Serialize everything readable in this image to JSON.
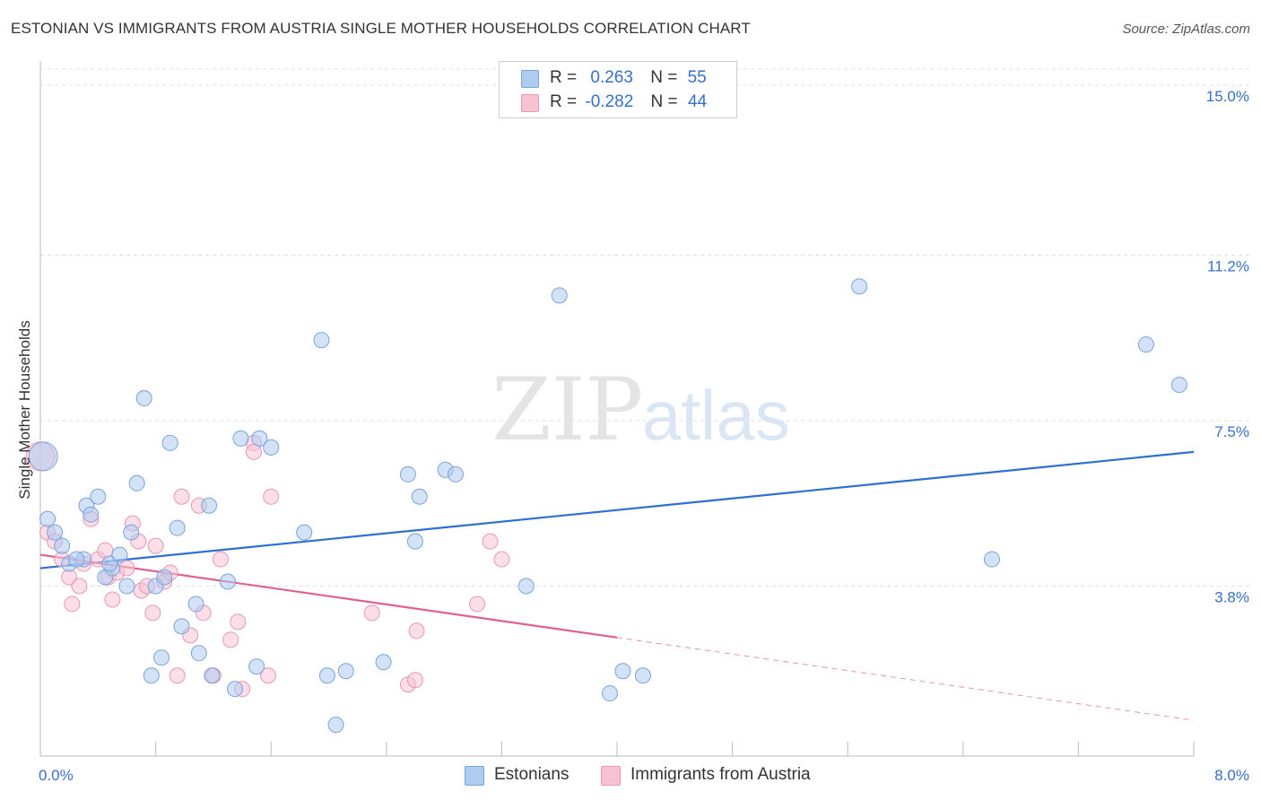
{
  "title": "ESTONIAN VS IMMIGRANTS FROM AUSTRIA SINGLE MOTHER HOUSEHOLDS CORRELATION CHART",
  "source": "Source: ZipAtlas.com",
  "legend_top": {
    "row1": {
      "r_label": "R =",
      "r_value": "0.263",
      "n_label": "N =",
      "n_value": "55"
    },
    "row2": {
      "r_label": "R =",
      "r_value": "-0.282",
      "n_label": "N =",
      "n_value": "44"
    }
  },
  "legend_bottom": {
    "series1": "Estonians",
    "series2": "Immigrants from Austria"
  },
  "colors": {
    "blue_fill": "#aecbf0",
    "blue_stroke": "#7aa4dc",
    "blue_line": "#2e6fd0",
    "pink_fill": "#f7c3d3",
    "pink_stroke": "#e898b2",
    "pink_line": "#e06090",
    "axis_text": "#3670c8",
    "grid": "#dddddd"
  },
  "watermark": {
    "zip": "ZIP",
    "atlas": "atlas"
  },
  "chart_data": {
    "type": "scatter",
    "title": "ESTONIAN VS IMMIGRANTS FROM AUSTRIA SINGLE MOTHER HOUSEHOLDS CORRELATION CHART",
    "xlabel": "",
    "ylabel": "Single Mother Households",
    "xlim": [
      0,
      8.0
    ],
    "ylim": [
      0.0,
      15.5
    ],
    "x_tick_labels": [
      "0.0%",
      "8.0%"
    ],
    "y_ticks": [
      3.8,
      7.5,
      11.2,
      15.0
    ],
    "y_tick_labels": [
      "3.8%",
      "7.5%",
      "11.2%",
      "15.0%"
    ],
    "grid": true,
    "legend": "top-center",
    "series": [
      {
        "name": "Estonians",
        "r": 0.263,
        "n": 55,
        "trend": {
          "x0": 0.0,
          "y0": 4.2,
          "x1": 8.0,
          "y1": 6.8,
          "dashed_from": null
        },
        "points": [
          [
            0.05,
            5.3
          ],
          [
            0.1,
            5.0
          ],
          [
            0.15,
            4.7
          ],
          [
            0.2,
            4.3
          ],
          [
            0.3,
            4.4
          ],
          [
            0.25,
            4.4
          ],
          [
            0.32,
            5.6
          ],
          [
            0.4,
            5.8
          ],
          [
            0.35,
            5.4
          ],
          [
            0.45,
            4.0
          ],
          [
            0.5,
            4.2
          ],
          [
            0.48,
            4.3
          ],
          [
            0.55,
            4.5
          ],
          [
            0.6,
            3.8
          ],
          [
            0.63,
            5.0
          ],
          [
            0.67,
            6.1
          ],
          [
            0.72,
            8.0
          ],
          [
            0.77,
            1.8
          ],
          [
            0.8,
            3.8
          ],
          [
            0.84,
            2.2
          ],
          [
            0.86,
            4.0
          ],
          [
            0.9,
            7.0
          ],
          [
            0.95,
            5.1
          ],
          [
            0.98,
            2.9
          ],
          [
            1.08,
            3.4
          ],
          [
            1.1,
            2.3
          ],
          [
            1.17,
            5.6
          ],
          [
            1.19,
            1.8
          ],
          [
            1.3,
            3.9
          ],
          [
            1.35,
            1.5
          ],
          [
            1.39,
            7.1
          ],
          [
            1.5,
            2.0
          ],
          [
            1.52,
            7.1
          ],
          [
            1.6,
            6.9
          ],
          [
            1.83,
            5.0
          ],
          [
            1.95,
            9.3
          ],
          [
            1.99,
            1.8
          ],
          [
            2.05,
            0.7
          ],
          [
            2.12,
            1.9
          ],
          [
            2.38,
            2.1
          ],
          [
            2.55,
            6.3
          ],
          [
            2.6,
            4.8
          ],
          [
            2.63,
            5.8
          ],
          [
            2.81,
            6.4
          ],
          [
            2.88,
            6.3
          ],
          [
            3.37,
            3.8
          ],
          [
            3.6,
            10.3
          ],
          [
            3.95,
            1.4
          ],
          [
            4.04,
            1.9
          ],
          [
            4.18,
            1.8
          ],
          [
            5.68,
            10.5
          ],
          [
            6.6,
            4.4
          ],
          [
            7.67,
            9.2
          ],
          [
            7.9,
            8.3
          ],
          [
            0.02,
            6.7
          ]
        ]
      },
      {
        "name": "Immigrants from Austria",
        "r": -0.282,
        "n": 44,
        "trend": {
          "x0": 0.0,
          "y0": 4.5,
          "x1": 8.0,
          "y1": 0.8,
          "dashed_from": 4.0
        },
        "points": [
          [
            0.05,
            5.0
          ],
          [
            0.1,
            4.8
          ],
          [
            0.15,
            4.4
          ],
          [
            0.2,
            4.0
          ],
          [
            0.22,
            3.4
          ],
          [
            0.27,
            3.8
          ],
          [
            0.3,
            4.3
          ],
          [
            0.35,
            5.3
          ],
          [
            0.4,
            4.4
          ],
          [
            0.45,
            4.6
          ],
          [
            0.47,
            4.0
          ],
          [
            0.5,
            3.5
          ],
          [
            0.53,
            4.1
          ],
          [
            0.6,
            4.2
          ],
          [
            0.64,
            5.2
          ],
          [
            0.68,
            4.8
          ],
          [
            0.7,
            3.7
          ],
          [
            0.74,
            3.8
          ],
          [
            0.78,
            3.2
          ],
          [
            0.8,
            4.7
          ],
          [
            0.86,
            3.9
          ],
          [
            0.9,
            4.1
          ],
          [
            0.95,
            1.8
          ],
          [
            0.98,
            5.8
          ],
          [
            1.04,
            2.7
          ],
          [
            1.1,
            5.6
          ],
          [
            1.13,
            3.2
          ],
          [
            1.2,
            1.8
          ],
          [
            1.25,
            4.4
          ],
          [
            1.32,
            2.6
          ],
          [
            1.37,
            3.0
          ],
          [
            1.4,
            1.5
          ],
          [
            1.48,
            7.0
          ],
          [
            1.48,
            6.8
          ],
          [
            1.58,
            1.8
          ],
          [
            1.6,
            5.8
          ],
          [
            2.3,
            3.2
          ],
          [
            2.55,
            1.6
          ],
          [
            2.6,
            1.7
          ],
          [
            2.61,
            2.8
          ],
          [
            3.03,
            3.4
          ],
          [
            3.12,
            4.8
          ],
          [
            3.2,
            4.4
          ],
          [
            0.0,
            6.7
          ]
        ]
      }
    ]
  }
}
